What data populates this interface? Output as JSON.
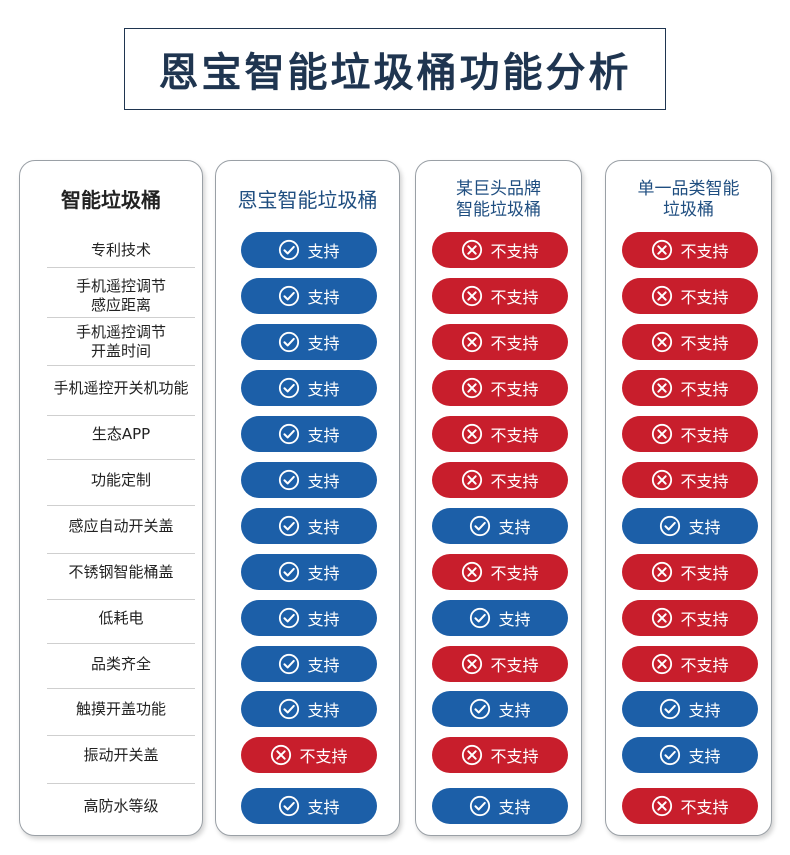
{
  "title": "恩宝智能垃圾桶功能分析",
  "columns": {
    "features_header": "智能垃圾桶",
    "enbao_header": "恩宝智能垃圾桶",
    "giant_header_line1": "某巨头品牌",
    "giant_header_line2": "智能垃圾桶",
    "single_header_line1": "单一品类智能",
    "single_header_line2": "垃圾桶"
  },
  "labels": {
    "yes": "支持",
    "no": "不支持"
  },
  "colors": {
    "yes": "#1c5fa8",
    "no": "#c81e2c",
    "title": "#1f3550"
  },
  "icons": {
    "yes": "check-circle-icon",
    "no": "x-circle-icon"
  },
  "rows": [
    {
      "feature": [
        "专利技术"
      ],
      "enbao": true,
      "giant": false,
      "single": false
    },
    {
      "feature": [
        "手机遥控调节",
        "感应距离"
      ],
      "enbao": true,
      "giant": false,
      "single": false
    },
    {
      "feature": [
        "手机遥控调节",
        "开盖时间"
      ],
      "enbao": true,
      "giant": false,
      "single": false
    },
    {
      "feature": [
        "手机遥控开关机功能"
      ],
      "enbao": true,
      "giant": false,
      "single": false
    },
    {
      "feature": [
        "生态APP"
      ],
      "enbao": true,
      "giant": false,
      "single": false
    },
    {
      "feature": [
        "功能定制"
      ],
      "enbao": true,
      "giant": false,
      "single": false
    },
    {
      "feature": [
        "感应自动开关盖"
      ],
      "enbao": true,
      "giant": true,
      "single": true
    },
    {
      "feature": [
        "不锈钢智能桶盖"
      ],
      "enbao": true,
      "giant": false,
      "single": false
    },
    {
      "feature": [
        "低耗电"
      ],
      "enbao": true,
      "giant": true,
      "single": false
    },
    {
      "feature": [
        "品类齐全"
      ],
      "enbao": true,
      "giant": false,
      "single": false
    },
    {
      "feature": [
        "触摸开盖功能"
      ],
      "enbao": true,
      "giant": true,
      "single": true
    },
    {
      "feature": [
        "振动开关盖"
      ],
      "enbao": false,
      "giant": false,
      "single": true
    },
    {
      "feature": [
        "高防水等级"
      ],
      "enbao": true,
      "giant": true,
      "single": false
    }
  ]
}
